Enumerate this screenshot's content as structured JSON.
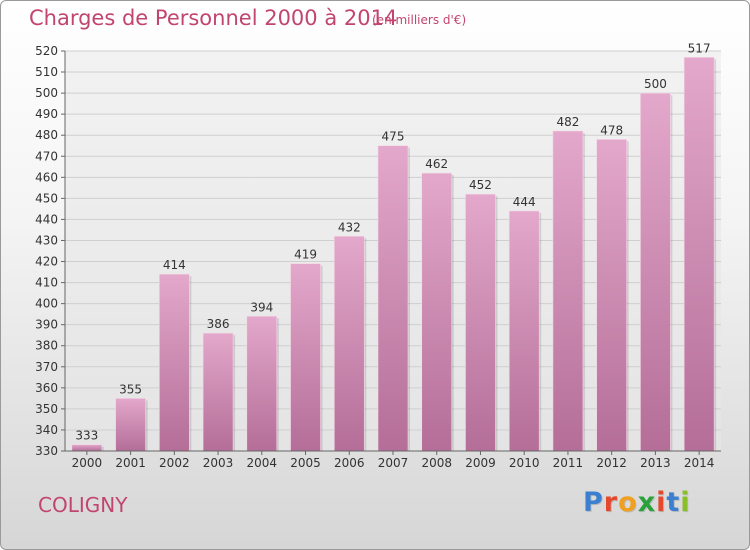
{
  "header": {
    "title": "Charges de Personnel 2000 à 2014",
    "unit": "(en milliers d'€)"
  },
  "footer": {
    "commune": "COLIGNY",
    "brand": "Proxiti",
    "brand_colors": [
      "#3b7fd0",
      "#e5492d",
      "#f0a020",
      "#2aa23a",
      "#e5492d",
      "#3b7fd0",
      "#8bbf2a"
    ]
  },
  "colors": {
    "accent": "#c2456f",
    "bar_top": "#e3a8cb",
    "bar_bottom": "#b46e98"
  },
  "chart_data": {
    "type": "bar",
    "categories": [
      "2000",
      "2001",
      "2002",
      "2003",
      "2004",
      "2005",
      "2006",
      "2007",
      "2008",
      "2009",
      "2010",
      "2011",
      "2012",
      "2013",
      "2014"
    ],
    "values": [
      333,
      355,
      414,
      386,
      394,
      419,
      432,
      475,
      462,
      452,
      444,
      482,
      478,
      500,
      517
    ],
    "ylim": [
      330,
      520
    ],
    "yticks": [
      330,
      340,
      350,
      360,
      370,
      380,
      390,
      400,
      410,
      420,
      430,
      440,
      450,
      460,
      470,
      480,
      490,
      500,
      510,
      520
    ],
    "grid": true,
    "xlabel": "",
    "ylabel": ""
  }
}
